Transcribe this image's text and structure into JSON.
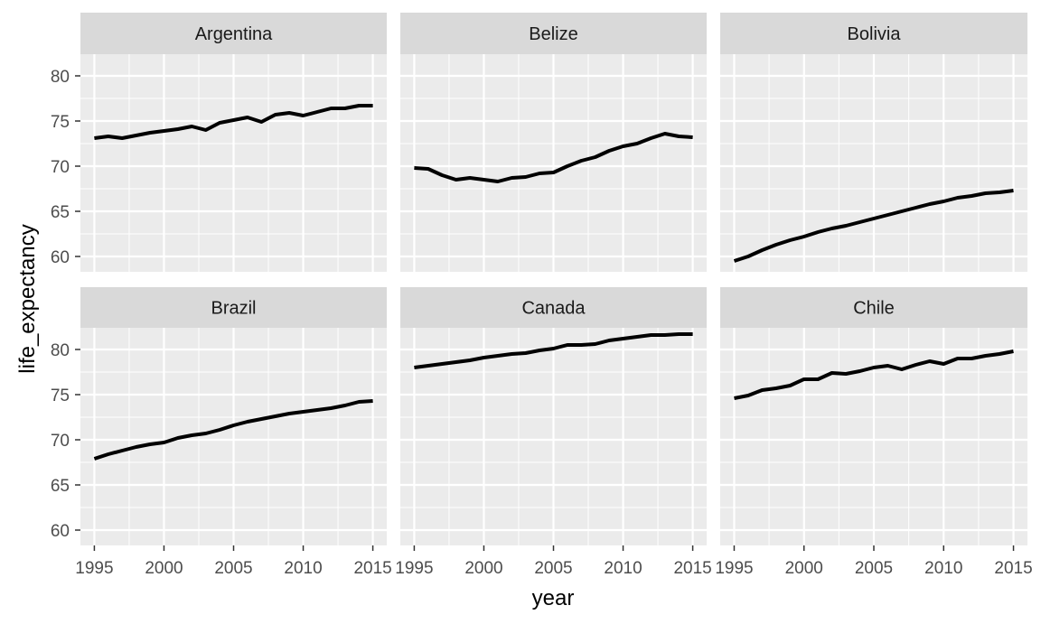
{
  "chart_data": {
    "type": "line",
    "xlabel": "year",
    "ylabel": "life_expectancy",
    "xlim": [
      1994,
      2016
    ],
    "ylim": [
      58.3,
      82.4
    ],
    "x_ticks": [
      1995,
      2000,
      2005,
      2010,
      2015
    ],
    "y_ticks": [
      60,
      65,
      70,
      75,
      80
    ],
    "grid": true,
    "layout": "facet grid 2 rows x 3 columns, shared axes",
    "colors": {
      "panel_background": "#ebebeb",
      "strip_background": "#d9d9d9",
      "grid": "#ffffff",
      "line": "#000000"
    },
    "x": [
      1995,
      1996,
      1997,
      1998,
      1999,
      2000,
      2001,
      2002,
      2003,
      2004,
      2005,
      2006,
      2007,
      2008,
      2009,
      2010,
      2011,
      2012,
      2013,
      2014,
      2015
    ],
    "series": [
      {
        "name": "Argentina",
        "values": [
          73.1,
          73.3,
          73.1,
          73.4,
          73.7,
          73.9,
          74.1,
          74.4,
          74.0,
          74.8,
          75.1,
          75.4,
          74.9,
          75.7,
          75.9,
          75.6,
          76.0,
          76.4,
          76.4,
          76.7,
          76.7
        ]
      },
      {
        "name": "Belize",
        "values": [
          69.8,
          69.7,
          69.0,
          68.5,
          68.7,
          68.5,
          68.3,
          68.7,
          68.8,
          69.2,
          69.3,
          70.0,
          70.6,
          71.0,
          71.7,
          72.2,
          72.5,
          73.1,
          73.6,
          73.3,
          73.2
        ]
      },
      {
        "name": "Bolivia",
        "values": [
          59.5,
          60.0,
          60.7,
          61.3,
          61.8,
          62.2,
          62.7,
          63.1,
          63.4,
          63.8,
          64.2,
          64.6,
          65.0,
          65.4,
          65.8,
          66.1,
          66.5,
          66.7,
          67.0,
          67.1,
          67.3
        ]
      },
      {
        "name": "Brazil",
        "values": [
          67.9,
          68.4,
          68.8,
          69.2,
          69.5,
          69.7,
          70.2,
          70.5,
          70.7,
          71.1,
          71.6,
          72.0,
          72.3,
          72.6,
          72.9,
          73.1,
          73.3,
          73.5,
          73.8,
          74.2,
          74.3
        ]
      },
      {
        "name": "Canada",
        "values": [
          78.0,
          78.2,
          78.4,
          78.6,
          78.8,
          79.1,
          79.3,
          79.5,
          79.6,
          79.9,
          80.1,
          80.5,
          80.5,
          80.6,
          81.0,
          81.2,
          81.4,
          81.6,
          81.6,
          81.7,
          81.7
        ]
      },
      {
        "name": "Chile",
        "values": [
          74.6,
          74.9,
          75.5,
          75.7,
          76.0,
          76.7,
          76.7,
          77.4,
          77.3,
          77.6,
          78.0,
          78.2,
          77.8,
          78.3,
          78.7,
          78.4,
          79.0,
          79.0,
          79.3,
          79.5,
          79.8
        ]
      }
    ]
  }
}
